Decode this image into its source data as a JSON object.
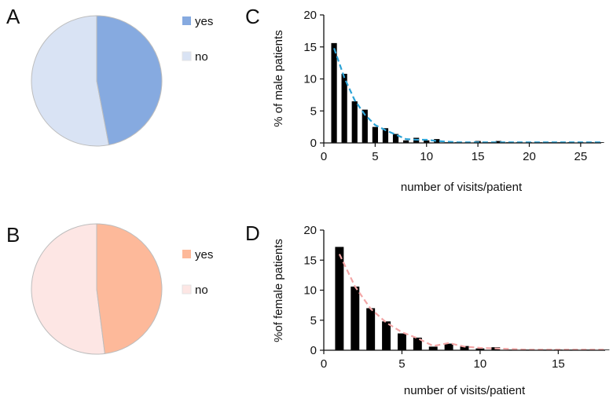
{
  "panels": {
    "A": "A",
    "B": "B",
    "C": "C",
    "D": "D"
  },
  "chart_data": [
    {
      "panel": "A",
      "type": "pie",
      "title": "",
      "labels": [
        "yes",
        "no"
      ],
      "values": [
        47,
        53
      ],
      "colors": [
        "#86aae0",
        "#d9e3f4"
      ],
      "legend": "right"
    },
    {
      "panel": "B",
      "type": "pie",
      "title": "",
      "labels": [
        "yes",
        "no"
      ],
      "values": [
        48,
        52
      ],
      "colors": [
        "#fdb99a",
        "#fde6e4"
      ],
      "legend": "right"
    },
    {
      "panel": "C",
      "type": "bar",
      "title": "",
      "xlabel": "number of visits/patient",
      "ylabel": "% of male patients",
      "xlim": [
        0,
        27
      ],
      "ylim": [
        0,
        20
      ],
      "xticks": [
        0,
        5,
        10,
        15,
        20,
        25
      ],
      "yticks": [
        0,
        5,
        10,
        15,
        20
      ],
      "grid": false,
      "bar_color": "#000000",
      "trend_color": "#2ea3d6",
      "x": [
        1,
        2,
        3,
        4,
        5,
        6,
        7,
        8,
        9,
        10,
        11,
        12,
        13,
        14,
        15,
        16,
        17,
        18,
        19,
        20,
        21,
        22,
        23,
        24,
        25,
        26,
        27
      ],
      "values": [
        15.6,
        10.8,
        6.5,
        5.2,
        2.5,
        2.3,
        1.4,
        0.4,
        0.8,
        0.4,
        0.6,
        0.1,
        0.1,
        0.1,
        0.3,
        0.1,
        0.3,
        0.1,
        0.1,
        0.1,
        0.1,
        0.1,
        0.1,
        0.1,
        0.1,
        0.1,
        0.1
      ],
      "trend": [
        14.8,
        10.2,
        6.7,
        4.4,
        2.8,
        2.0,
        1.3,
        0.6,
        0.5,
        0.5,
        0.3,
        0.2,
        0.1,
        0.1,
        0.1,
        0.1,
        0.1,
        0.1,
        0.1,
        0.1,
        0.1,
        0.1,
        0.1,
        0.1,
        0.1,
        0.1,
        0.1
      ]
    },
    {
      "panel": "D",
      "type": "bar",
      "title": "",
      "xlabel": "number of visits/patient",
      "ylabel": "%of female patients",
      "xlim": [
        0,
        18
      ],
      "ylim": [
        0,
        20
      ],
      "xticks": [
        0,
        5,
        10,
        15
      ],
      "yticks": [
        0,
        5,
        10,
        15,
        20
      ],
      "grid": false,
      "bar_color": "#000000",
      "trend_color": "#f2a6a6",
      "x": [
        1,
        2,
        3,
        4,
        5,
        6,
        7,
        8,
        9,
        10,
        11,
        12,
        13,
        14,
        15,
        16,
        17,
        18
      ],
      "values": [
        17.2,
        10.6,
        7.0,
        4.8,
        2.8,
        2.1,
        0.6,
        1.1,
        0.7,
        0.3,
        0.5,
        0.1,
        0.1,
        0.1,
        0.1,
        0.1,
        0.1,
        0.1
      ],
      "trend": [
        16.0,
        10.6,
        6.9,
        4.6,
        3.0,
        2.0,
        0.7,
        1.2,
        0.6,
        0.4,
        0.3,
        0.2,
        0.1,
        0.1,
        0.1,
        0.1,
        0.1,
        0.1
      ]
    }
  ]
}
